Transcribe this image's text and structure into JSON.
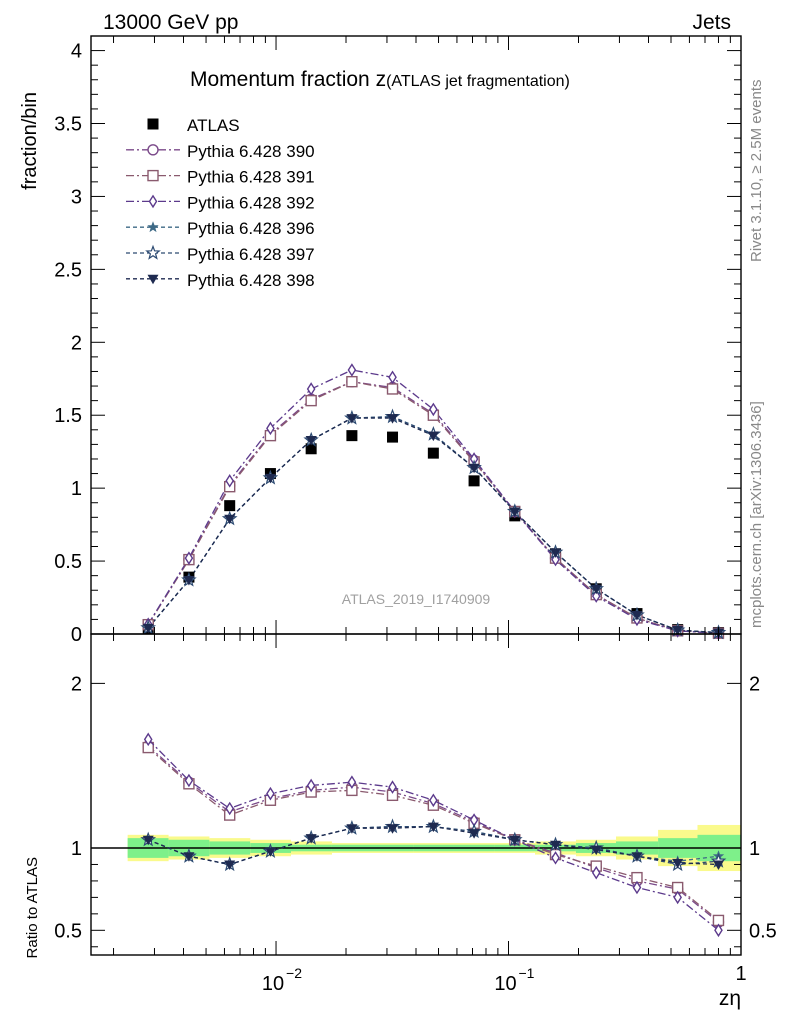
{
  "header": {
    "left": "13000 GeV pp",
    "right": "Jets"
  },
  "side_labels": {
    "top": "Rivet 3.1.10, ≥ 2.5M events",
    "bottom": "mcplots.cern.ch [arXiv:1306.3436]"
  },
  "colors": {
    "atlas": "#000000",
    "p390": "#7b4a8a",
    "p391": "#8a5a6e",
    "p392": "#5c3a8c",
    "p396": "#3e6a86",
    "p397": "#2c4a72",
    "p398": "#1e2a50",
    "band_inner": "#7ef08a",
    "band_outer": "#fafa8c"
  },
  "chart_data": [
    {
      "type": "scatter",
      "title": "Momentum fraction z(ATLAS jet fragmentation)",
      "title_main": "Momentum fraction z",
      "title_sub": "(ATLAS jet fragmentation)",
      "ylabel": "fraction/bin",
      "watermark": "ATLAS_2019_I1740909",
      "xscale": "log",
      "xlim": [
        0.0016,
        1
      ],
      "ylim": [
        0,
        4.1
      ],
      "yticks": [
        "0",
        "0.5",
        "1",
        "1.5",
        "2",
        "2.5",
        "3",
        "3.5",
        "4"
      ],
      "legend_position": "top-left",
      "x": [
        0.00282,
        0.00422,
        0.00632,
        0.00946,
        0.01416,
        0.0212,
        0.0317,
        0.0475,
        0.0711,
        0.1064,
        0.1593,
        0.2384,
        0.3569,
        0.534,
        0.8
      ],
      "series": [
        {
          "name": "ATLAS",
          "marker": "filled-square",
          "line": "none",
          "values": [
            0.04,
            0.39,
            0.88,
            1.1,
            1.27,
            1.36,
            1.35,
            1.24,
            1.05,
            0.81,
            0.55,
            0.31,
            0.14,
            0.03,
            0.01
          ]
        },
        {
          "name": "Pythia 6.428 390",
          "marker": "open-circle",
          "line": "dashdot",
          "values": [
            0.065,
            0.51,
            1.02,
            1.37,
            1.61,
            1.73,
            1.69,
            1.51,
            1.19,
            0.84,
            0.52,
            0.27,
            0.11,
            0.022,
            0.0055
          ]
        },
        {
          "name": "Pythia 6.428 391",
          "marker": "open-square",
          "line": "dashdot",
          "values": [
            0.064,
            0.51,
            1.01,
            1.36,
            1.6,
            1.73,
            1.68,
            1.5,
            1.18,
            0.84,
            0.52,
            0.27,
            0.11,
            0.022,
            0.0055
          ]
        },
        {
          "name": "Pythia 6.428 392",
          "marker": "open-diamond",
          "line": "dashdot",
          "values": [
            0.067,
            0.52,
            1.05,
            1.41,
            1.68,
            1.81,
            1.76,
            1.54,
            1.2,
            0.84,
            0.51,
            0.26,
            0.1,
            0.021,
            0.005
          ]
        },
        {
          "name": "Pythia 6.428 396",
          "marker": "filled-star",
          "line": "dashed",
          "values": [
            0.042,
            0.37,
            0.79,
            1.07,
            1.33,
            1.48,
            1.49,
            1.37,
            1.14,
            0.84,
            0.56,
            0.31,
            0.13,
            0.027,
            0.0095
          ]
        },
        {
          "name": "Pythia 6.428 397",
          "marker": "open-star",
          "line": "dashed",
          "values": [
            0.042,
            0.37,
            0.79,
            1.07,
            1.33,
            1.48,
            1.49,
            1.37,
            1.14,
            0.84,
            0.56,
            0.31,
            0.13,
            0.027,
            0.0095
          ]
        },
        {
          "name": "Pythia 6.428 398",
          "marker": "filled-triangle-down",
          "line": "dashed",
          "values": [
            0.042,
            0.37,
            0.79,
            1.07,
            1.33,
            1.48,
            1.48,
            1.36,
            1.14,
            0.84,
            0.56,
            0.31,
            0.13,
            0.027,
            0.009
          ]
        }
      ]
    },
    {
      "type": "scatter",
      "ylabel": "Ratio to ATLAS",
      "xlabel": "zη",
      "xscale": "log",
      "xlim": [
        0.0016,
        1
      ],
      "ylim": [
        0.35,
        2.3
      ],
      "yticks": [
        "0.5",
        "1",
        "2"
      ],
      "xticks": [
        {
          "base": "10",
          "exp": "−2"
        },
        {
          "base": "10",
          "exp": "−1"
        },
        {
          "base": "1",
          "exp": ""
        }
      ],
      "reference_line": 1,
      "x": [
        0.00282,
        0.00422,
        0.00632,
        0.00946,
        0.01416,
        0.0212,
        0.0317,
        0.0475,
        0.0711,
        0.1064,
        0.1593,
        0.2384,
        0.3569,
        0.534,
        0.8
      ],
      "bins": [
        0.0023,
        0.00345,
        0.00517,
        0.00775,
        0.0116,
        0.0174,
        0.026,
        0.039,
        0.058,
        0.087,
        0.13,
        0.195,
        0.29,
        0.44,
        0.65,
        1.0
      ],
      "band_inner": [
        0.06,
        0.05,
        0.04,
        0.03,
        0.02,
        0.02,
        0.02,
        0.02,
        0.02,
        0.02,
        0.02,
        0.03,
        0.04,
        0.06,
        0.08
      ],
      "band_outer": [
        0.08,
        0.07,
        0.06,
        0.05,
        0.04,
        0.03,
        0.03,
        0.03,
        0.03,
        0.03,
        0.04,
        0.05,
        0.07,
        0.11,
        0.14
      ],
      "series": [
        {
          "name": "Pythia 6.428 390",
          "values": [
            1.62,
            1.4,
            1.22,
            1.3,
            1.35,
            1.37,
            1.34,
            1.27,
            1.16,
            1.05,
            0.97,
            0.88,
            0.8,
            0.75,
            0.55
          ]
        },
        {
          "name": "Pythia 6.428 391",
          "values": [
            1.61,
            1.39,
            1.2,
            1.29,
            1.34,
            1.35,
            1.32,
            1.26,
            1.15,
            1.05,
            0.96,
            0.89,
            0.82,
            0.76,
            0.56
          ]
        },
        {
          "name": "Pythia 6.428 392",
          "values": [
            1.66,
            1.41,
            1.24,
            1.33,
            1.38,
            1.4,
            1.37,
            1.29,
            1.17,
            1.05,
            0.94,
            0.85,
            0.76,
            0.7,
            0.5
          ]
        },
        {
          "name": "Pythia 6.428 396",
          "values": [
            1.05,
            0.95,
            0.9,
            0.98,
            1.06,
            1.12,
            1.13,
            1.13,
            1.1,
            1.05,
            1.02,
            1.0,
            0.95,
            0.92,
            0.95
          ]
        },
        {
          "name": "Pythia 6.428 397",
          "values": [
            1.05,
            0.95,
            0.9,
            0.98,
            1.06,
            1.12,
            1.13,
            1.13,
            1.1,
            1.05,
            1.02,
            1.0,
            0.95,
            0.9,
            0.92
          ]
        },
        {
          "name": "Pythia 6.428 398",
          "values": [
            1.05,
            0.95,
            0.9,
            0.98,
            1.06,
            1.12,
            1.12,
            1.13,
            1.09,
            1.05,
            1.02,
            0.99,
            0.95,
            0.91,
            0.9
          ]
        }
      ]
    }
  ]
}
